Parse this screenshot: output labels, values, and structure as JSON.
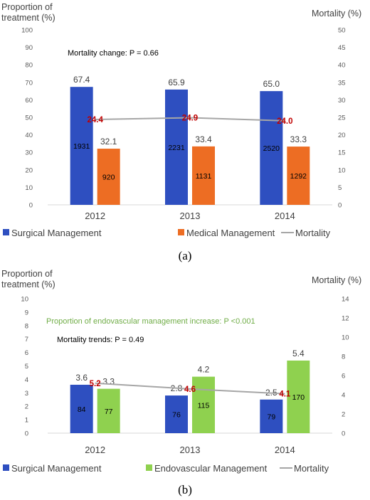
{
  "chart_data": [
    {
      "type": "bar",
      "panel_label": "(a)",
      "categories": [
        "2012",
        "2013",
        "2014"
      ],
      "ylabel_left": [
        "Proportion of",
        "treatment (%)"
      ],
      "ylabel_right": "Mortality (%)",
      "ylim_left": [
        0,
        100
      ],
      "yticks_left": [
        0,
        10,
        20,
        30,
        40,
        50,
        60,
        70,
        80,
        90,
        100
      ],
      "ylim_right": [
        0,
        50
      ],
      "yticks_right": [
        0,
        5,
        10,
        15,
        20,
        25,
        30,
        35,
        40,
        45,
        50
      ],
      "annotations": [
        {
          "text": "Mortality change: P = 0.66",
          "color": "#000000"
        }
      ],
      "series": [
        {
          "name": "Surgical Management",
          "color": "#2e4fc0",
          "values": [
            67.4,
            65.9,
            65.0
          ],
          "value_labels": [
            "67.4",
            "65.9",
            "65.0"
          ],
          "counts": [
            "1931",
            "2231",
            "2520"
          ]
        },
        {
          "name": "Medical Management",
          "color": "#ed6d23",
          "values": [
            32.1,
            33.4,
            33.3
          ],
          "value_labels": [
            "32.1",
            "33.4",
            "33.3"
          ],
          "counts": [
            "920",
            "1131",
            "1292"
          ]
        }
      ],
      "line": {
        "name": "Mortality",
        "color": "#a6a6a6",
        "axis": "right",
        "values": [
          24.4,
          24.9,
          24.0
        ],
        "value_labels": [
          "24.4",
          "24.9",
          "24.0"
        ]
      },
      "legend": "bottom"
    },
    {
      "type": "bar",
      "panel_label": "(b)",
      "categories": [
        "2012",
        "2013",
        "2014"
      ],
      "ylabel_left": [
        "Proportion of",
        "treatment (%)"
      ],
      "ylabel_right": "Mortality (%)",
      "ylim_left": [
        0,
        10
      ],
      "yticks_left": [
        0,
        1,
        2,
        3,
        4,
        5,
        6,
        7,
        8,
        9,
        10
      ],
      "ylim_right": [
        0,
        14
      ],
      "yticks_right": [
        0,
        2,
        4,
        6,
        8,
        10,
        12,
        14
      ],
      "annotations": [
        {
          "text": "Proportion of endovascular management increase: P <0.001",
          "color": "#70ad47"
        },
        {
          "text": "Mortality trends: P = 0.49",
          "color": "#000000"
        }
      ],
      "series": [
        {
          "name": "Surgical Management",
          "color": "#2e4fc0",
          "values": [
            3.6,
            2.8,
            2.5
          ],
          "value_labels": [
            "3.6",
            "2.8",
            "2.5"
          ],
          "counts": [
            "84",
            "76",
            "79"
          ]
        },
        {
          "name": "Endovascular Management",
          "color": "#8fd14f",
          "values": [
            3.3,
            4.2,
            5.4
          ],
          "value_labels": [
            "3.3",
            "4.2",
            "5.4"
          ],
          "counts": [
            "77",
            "115",
            "170"
          ]
        }
      ],
      "line": {
        "name": "Mortality",
        "color": "#a6a6a6",
        "axis": "right",
        "values": [
          5.2,
          4.6,
          4.1
        ],
        "value_labels": [
          "5.2",
          "4.6",
          "4.1"
        ]
      },
      "legend": "bottom"
    }
  ]
}
